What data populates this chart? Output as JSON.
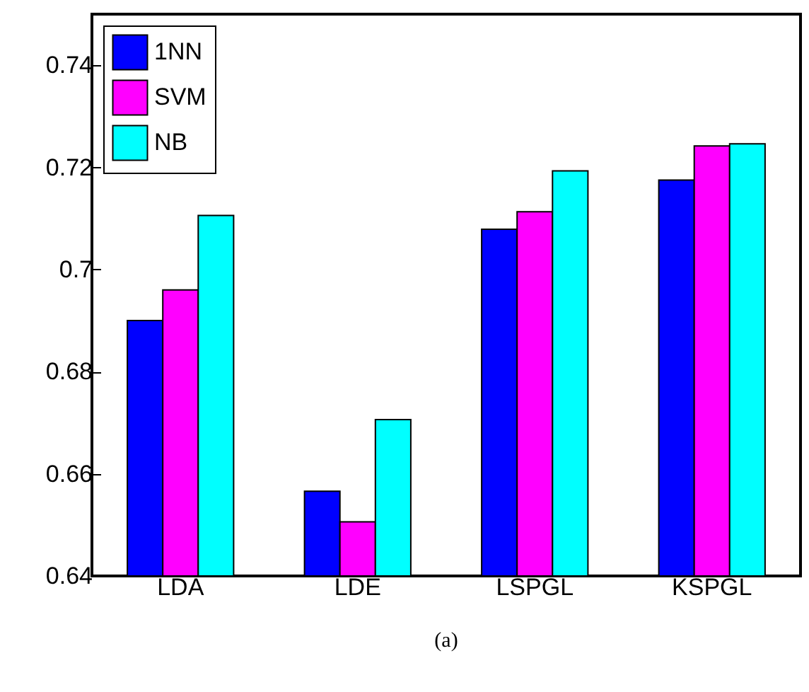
{
  "chart_data": {
    "type": "bar",
    "categories": [
      "LDA",
      "LDE",
      "LSPGL",
      "KSPGL"
    ],
    "series": [
      {
        "name": "1NN",
        "color": "#0000ff",
        "values": [
          0.69,
          0.6566,
          0.7079,
          0.7175
        ]
      },
      {
        "name": "SVM",
        "color": "#ff00ff",
        "values": [
          0.696,
          0.6506,
          0.7113,
          0.7242
        ]
      },
      {
        "name": "NB",
        "color": "#00ffff",
        "values": [
          0.7106,
          0.6706,
          0.7193,
          0.7246
        ]
      }
    ],
    "ylim": [
      0.64,
      0.75
    ],
    "yticks": [
      0.64,
      0.66,
      {
        "value": 0.68,
        "label": "0.68"
      },
      {
        "value": 0.7,
        "label": "0.7"
      },
      0.72,
      0.74
    ],
    "legend": "top left",
    "grid": false,
    "annotations": [
      "(a)"
    ]
  }
}
